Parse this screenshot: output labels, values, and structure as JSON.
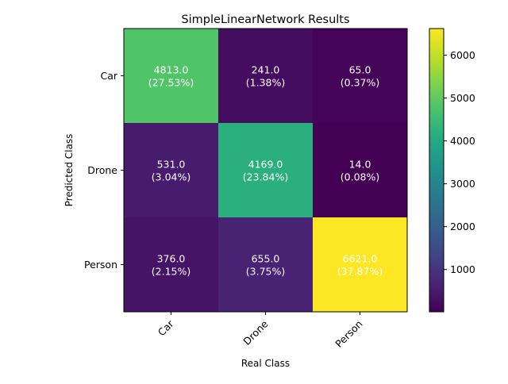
{
  "chart_data": {
    "type": "heatmap",
    "title": "SimpleLinearNetwork Results",
    "xlabel": "Real Class",
    "ylabel": "Predicted Class",
    "x_categories": [
      "Car",
      "Drone",
      "Person"
    ],
    "y_categories": [
      "Car",
      "Drone",
      "Person"
    ],
    "values": [
      [
        4813.0,
        241.0,
        65.0
      ],
      [
        531.0,
        4169.0,
        14.0
      ],
      [
        376.0,
        655.0,
        6621.0
      ]
    ],
    "cell_labels": [
      [
        [
          "4813.0",
          "(27.53%)"
        ],
        [
          "241.0",
          "(1.38%)"
        ],
        [
          "65.0",
          "(0.37%)"
        ]
      ],
      [
        [
          "531.0",
          "(3.04%)"
        ],
        [
          "4169.0",
          "(23.84%)"
        ],
        [
          "14.0",
          "(0.08%)"
        ]
      ],
      [
        [
          "376.0",
          "(2.15%)"
        ],
        [
          "655.0",
          "(3.75%)"
        ],
        [
          "6621.0",
          "(37.87%)"
        ]
      ]
    ],
    "colormap": "viridis",
    "colorbar": {
      "vmin": 14.0,
      "vmax": 6621.0,
      "ticks": [
        1000,
        2000,
        3000,
        4000,
        5000,
        6000
      ],
      "tick_labels": [
        "1000",
        "2000",
        "3000",
        "4000",
        "5000",
        "6000"
      ]
    },
    "cell_text_colors": {
      "on_dark": "#ffffff",
      "on_bright": "#ffffff"
    },
    "grid": false
  }
}
